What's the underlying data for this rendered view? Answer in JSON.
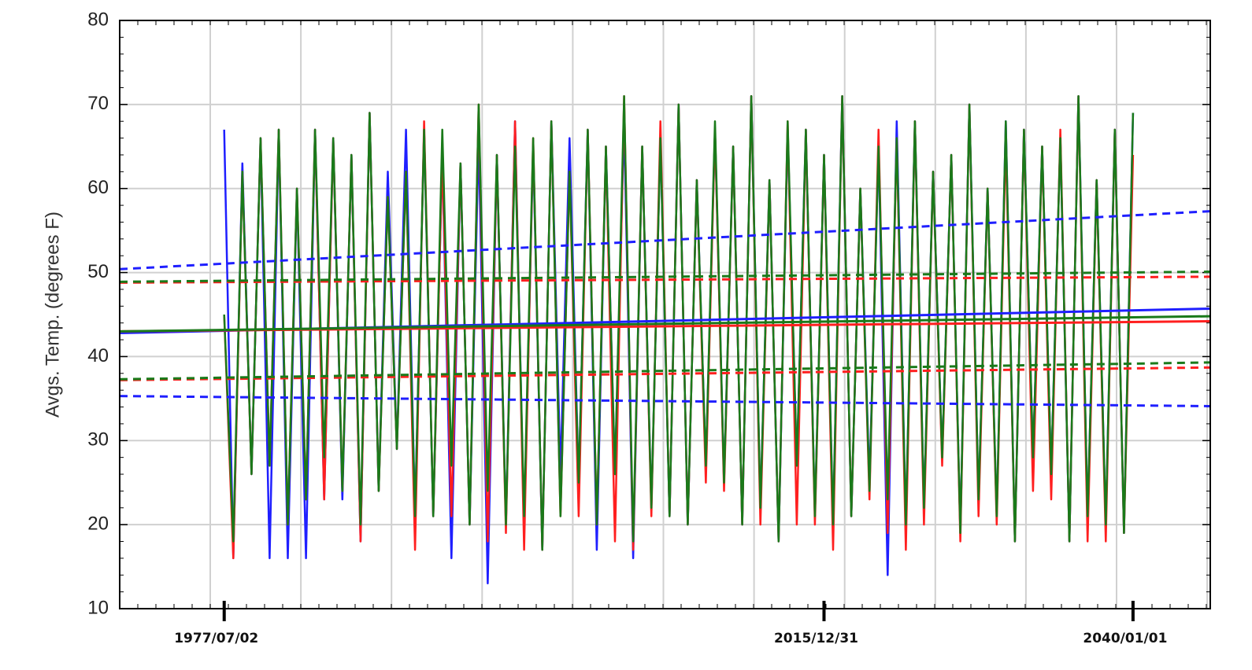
{
  "chart_data": {
    "type": "line",
    "ylabel": "Avgs. Temp. (degrees F)",
    "ylim": [
      10,
      80
    ],
    "yticks": [
      10,
      20,
      30,
      40,
      50,
      60,
      70,
      80
    ],
    "grid": true,
    "categories": [
      null,
      null,
      null,
      null,
      null,
      null,
      null,
      null,
      null,
      null,
      null,
      "1977/07/02",
      null,
      null,
      null,
      null,
      null,
      null,
      null,
      null,
      null,
      null,
      null,
      null,
      null,
      null,
      null,
      null,
      null,
      null,
      null,
      null,
      null,
      null,
      null,
      null,
      null,
      null,
      null,
      null,
      null,
      null,
      null,
      null,
      null,
      null,
      null,
      null,
      null,
      null,
      null,
      null,
      null,
      null,
      null,
      null,
      null,
      null,
      null,
      null,
      null,
      null,
      null,
      null,
      null,
      null,
      null,
      null,
      null,
      null,
      null,
      null,
      null,
      null,
      null,
      null,
      null,
      "2015/12/31",
      null,
      null,
      null,
      null,
      null,
      null,
      null,
      null,
      null,
      null,
      null,
      null,
      null,
      null,
      null,
      null,
      null,
      null,
      null,
      null,
      null,
      null,
      null,
      null,
      null,
      null,
      null,
      null,
      null,
      null,
      null,
      null,
      null,
      "2040/01/01",
      null,
      null,
      null,
      null,
      null,
      null,
      null,
      null
    ],
    "series": [
      {
        "color": "#1f1fff",
        "values": [
          null,
          null,
          null,
          null,
          null,
          null,
          null,
          null,
          null,
          null,
          null,
          67,
          16,
          63,
          26,
          66,
          16,
          67,
          16,
          60,
          16,
          67,
          23,
          66,
          23,
          64,
          18,
          69,
          24,
          62,
          29,
          67,
          21,
          67,
          21,
          64,
          16,
          63,
          20,
          66,
          13,
          64,
          20,
          68,
          19,
          65,
          17,
          68,
          26,
          66,
          25,
          67,
          17,
          65,
          26,
          68,
          16,
          65,
          22,
          66,
          21,
          70,
          20,
          61,
          27,
          67,
          25,
          65,
          20,
          71,
          22,
          61,
          18,
          67,
          27,
          67,
          21,
          64,
          20,
          71,
          21,
          60,
          25,
          65,
          14,
          68,
          20,
          68,
          22,
          62,
          28,
          64,
          19,
          70,
          23,
          60,
          21,
          68,
          18,
          67,
          28,
          65,
          26,
          66,
          18,
          71,
          21,
          61,
          20,
          67,
          19,
          69,
          null,
          null,
          null,
          null,
          null,
          null,
          null,
          null
        ]
      },
      {
        "color": "#ff1f1f",
        "values": [
          null,
          null,
          null,
          null,
          null,
          null,
          null,
          null,
          null,
          null,
          null,
          45,
          16,
          62,
          26,
          66,
          27,
          67,
          20,
          60,
          23,
          67,
          23,
          66,
          24,
          64,
          18,
          69,
          24,
          59,
          29,
          62,
          17,
          68,
          21,
          64,
          21,
          63,
          20,
          70,
          18,
          64,
          19,
          68,
          17,
          66,
          17,
          68,
          21,
          62,
          21,
          67,
          20,
          65,
          18,
          71,
          17,
          65,
          21,
          68,
          21,
          70,
          20,
          61,
          25,
          67,
          24,
          65,
          20,
          71,
          20,
          61,
          18,
          68,
          20,
          67,
          20,
          64,
          17,
          71,
          21,
          60,
          23,
          67,
          19,
          66,
          17,
          68,
          20,
          62,
          27,
          64,
          18,
          70,
          21,
          60,
          20,
          66,
          18,
          67,
          24,
          65,
          23,
          67,
          18,
          71,
          18,
          61,
          18,
          67,
          19,
          64,
          null,
          null,
          null,
          null,
          null,
          null,
          null,
          null
        ]
      },
      {
        "color": "#1a7a1a",
        "values": [
          null,
          null,
          null,
          null,
          null,
          null,
          null,
          null,
          null,
          null,
          null,
          45,
          18,
          62,
          26,
          66,
          27,
          67,
          20,
          60,
          23,
          67,
          28,
          66,
          24,
          64,
          20,
          69,
          24,
          59,
          29,
          62,
          21,
          67,
          21,
          67,
          27,
          63,
          20,
          70,
          24,
          64,
          20,
          65,
          21,
          66,
          17,
          68,
          21,
          62,
          25,
          67,
          20,
          65,
          26,
          71,
          18,
          65,
          22,
          66,
          21,
          70,
          20,
          61,
          27,
          68,
          25,
          65,
          20,
          71,
          22,
          61,
          18,
          68,
          27,
          67,
          21,
          64,
          20,
          71,
          21,
          60,
          24,
          65,
          23,
          66,
          20,
          68,
          22,
          62,
          28,
          64,
          19,
          70,
          23,
          60,
          21,
          68,
          18,
          67,
          28,
          65,
          26,
          66,
          18,
          71,
          21,
          61,
          20,
          67,
          19,
          69,
          null,
          null,
          null,
          null,
          null,
          null,
          null,
          null
        ]
      }
    ],
    "trend_lines": [
      {
        "color": "#1f1fff",
        "dashed": false,
        "values": [
          42.8,
          45.7
        ]
      },
      {
        "color": "#ff1f1f",
        "dashed": false,
        "values": [
          43.0,
          44.2
        ]
      },
      {
        "color": "#1a7a1a",
        "dashed": false,
        "values": [
          43.0,
          44.8
        ]
      },
      {
        "color": "#1f1fff",
        "dashed": true,
        "values": [
          50.4,
          57.3
        ]
      },
      {
        "color": "#1f1fff",
        "dashed": true,
        "values": [
          35.3,
          34.1
        ]
      },
      {
        "color": "#ff1f1f",
        "dashed": true,
        "values": [
          48.8,
          49.5
        ]
      },
      {
        "color": "#ff1f1f",
        "dashed": true,
        "values": [
          37.2,
          38.7
        ]
      },
      {
        "color": "#1a7a1a",
        "dashed": true,
        "values": [
          48.9,
          50.1
        ]
      },
      {
        "color": "#1a7a1a",
        "dashed": true,
        "values": [
          37.3,
          39.3
        ]
      }
    ]
  }
}
